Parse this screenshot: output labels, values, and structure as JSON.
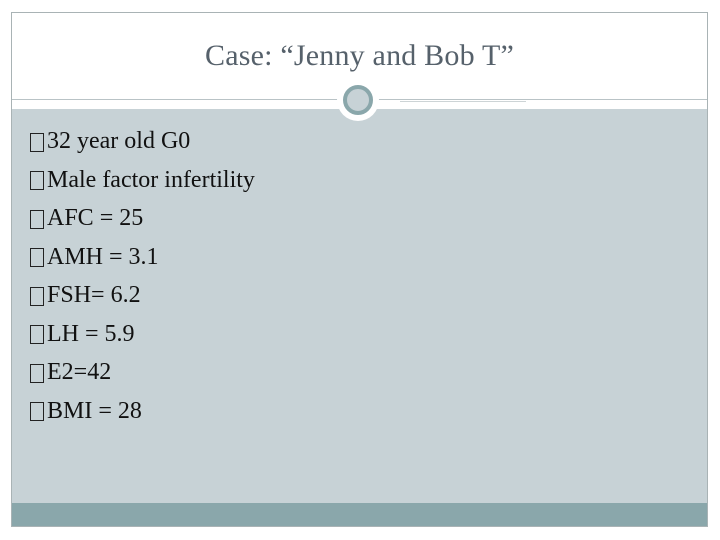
{
  "slide": {
    "title": "Case: “Jenny and Bob T”",
    "bullets": [
      "32 year old G0",
      "Male factor infertility",
      "AFC = 25",
      "AMH = 3.1",
      "FSH= 6.2",
      "LH = 5.9",
      "E2=42",
      "BMI = 28"
    ]
  },
  "colors": {
    "title_text": "#56616b",
    "content_background": "#c7d2d6",
    "accent": "#8aa7ab",
    "body_text": "#111111"
  },
  "icons": {
    "bullet": "missing-glyph-box-icon",
    "ornament": "circle-ring-icon"
  }
}
